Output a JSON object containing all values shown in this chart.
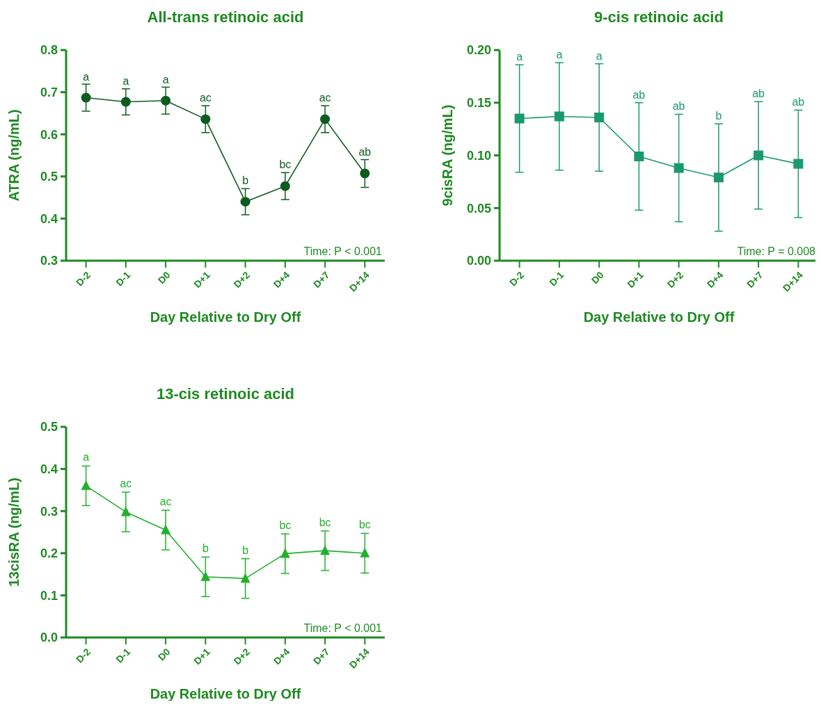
{
  "chart_data": [
    {
      "type": "line",
      "title": "All-trans retinoic acid",
      "xlabel": "Day Relative to Dry Off",
      "ylabel": "ATRA (ng/mL)",
      "marker": "circle",
      "line_style": "solid",
      "grid": false,
      "categories": [
        "D-2",
        "D-1",
        "D0",
        "D+1",
        "D+2",
        "D+4",
        "D+7",
        "D+14"
      ],
      "ylim": [
        0.3,
        0.8
      ],
      "yticks": [
        0.3,
        0.4,
        0.5,
        0.6,
        0.7,
        0.8
      ],
      "series": [
        {
          "color": "#0d5c1f",
          "values": [
            0.687,
            0.677,
            0.68,
            0.636,
            0.44,
            0.477,
            0.636,
            0.507
          ],
          "errors": [
            0.032,
            0.031,
            0.032,
            0.032,
            0.031,
            0.032,
            0.032,
            0.033
          ]
        }
      ],
      "annotations": [
        {
          "text": "a",
          "x": "D-2",
          "y": 0.718
        },
        {
          "text": "a",
          "x": "D-1",
          "y": 0.707
        },
        {
          "text": "a",
          "x": "D0",
          "y": 0.711
        },
        {
          "text": "ac",
          "x": "D+1",
          "y": 0.668
        },
        {
          "text": "b",
          "x": "D+2",
          "y": 0.472
        },
        {
          "text": "bc",
          "x": "D+4",
          "y": 0.509
        },
        {
          "text": "ac",
          "x": "D+7",
          "y": 0.668
        },
        {
          "text": "ab",
          "x": "D+14",
          "y": 0.54
        },
        "Time: P < 0.001"
      ]
    },
    {
      "type": "line",
      "title": "9-cis retinoic acid",
      "xlabel": "Day Relative to Dry Off",
      "ylabel": "9cisRA (ng/mL)",
      "marker": "square",
      "line_style": "solid",
      "grid": false,
      "categories": [
        "D-2",
        "D-1",
        "D0",
        "D+1",
        "D+2",
        "D+4",
        "D+7",
        "D+14"
      ],
      "ylim": [
        0,
        0.2
      ],
      "yticks": [
        {
          "value": 0,
          "label": "0.00"
        },
        {
          "value": 0.05,
          "label": "0.05"
        },
        {
          "value": 0.1,
          "label": "0.10"
        },
        {
          "value": 0.15,
          "label": "0.15"
        },
        {
          "value": 0.2,
          "label": "0.20"
        }
      ],
      "series": [
        {
          "color": "#1a9a6c",
          "values": [
            0.135,
            0.137,
            0.136,
            0.099,
            0.088,
            0.079,
            0.1,
            0.092
          ],
          "errors": [
            0.051,
            0.051,
            0.051,
            0.051,
            0.051,
            0.051,
            0.051,
            0.051
          ]
        }
      ],
      "annotations": [
        {
          "text": "a",
          "x": "D-2",
          "y": 0.186
        },
        {
          "text": "a",
          "x": "D-1",
          "y": 0.188
        },
        {
          "text": "a",
          "x": "D0",
          "y": 0.187
        },
        {
          "text": "ab",
          "x": "D+1",
          "y": 0.15
        },
        {
          "text": "ab",
          "x": "D+2",
          "y": 0.139
        },
        {
          "text": "b",
          "x": "D+4",
          "y": 0.13
        },
        {
          "text": "ab",
          "x": "D+7",
          "y": 0.151
        },
        {
          "text": "ab",
          "x": "D+14",
          "y": 0.143
        },
        "Time: P = 0.008"
      ]
    },
    {
      "type": "line",
      "title": "13-cis retinoic acid",
      "xlabel": "Day Relative to Dry Off",
      "ylabel": "13cisRA (ng/mL)",
      "marker": "triangle",
      "line_style": "solid",
      "grid": false,
      "categories": [
        "D-2",
        "D-1",
        "D0",
        "D+1",
        "D+2",
        "D+4",
        "D+7",
        "D+14"
      ],
      "ylim": [
        0,
        0.5
      ],
      "yticks": [
        {
          "value": 0,
          "label": "0.0"
        },
        {
          "value": 0.1,
          "label": "0.1"
        },
        {
          "value": 0.2,
          "label": "0.2"
        },
        {
          "value": 0.3,
          "label": "0.3"
        },
        {
          "value": 0.4,
          "label": "0.4"
        },
        {
          "value": 0.5,
          "label": "0.5"
        }
      ],
      "series": [
        {
          "color": "#22b02c",
          "values": [
            0.36,
            0.298,
            0.255,
            0.144,
            0.14,
            0.199,
            0.206,
            0.2
          ],
          "errors": [
            0.047,
            0.047,
            0.047,
            0.047,
            0.047,
            0.047,
            0.047,
            0.047
          ]
        }
      ],
      "annotations": [
        {
          "text": "a",
          "x": "D-2",
          "y": 0.409
        },
        {
          "text": "ac",
          "x": "D-1",
          "y": 0.347
        },
        {
          "text": "ac",
          "x": "D0",
          "y": 0.303
        },
        {
          "text": "b",
          "x": "D+1",
          "y": 0.193
        },
        {
          "text": "b",
          "x": "D+2",
          "y": 0.188
        },
        {
          "text": "bc",
          "x": "D+4",
          "y": 0.247
        },
        {
          "text": "bc",
          "x": "D+7",
          "y": 0.254
        },
        {
          "text": "bc",
          "x": "D+14",
          "y": 0.25
        },
        "Time: P < 0.001"
      ]
    }
  ]
}
